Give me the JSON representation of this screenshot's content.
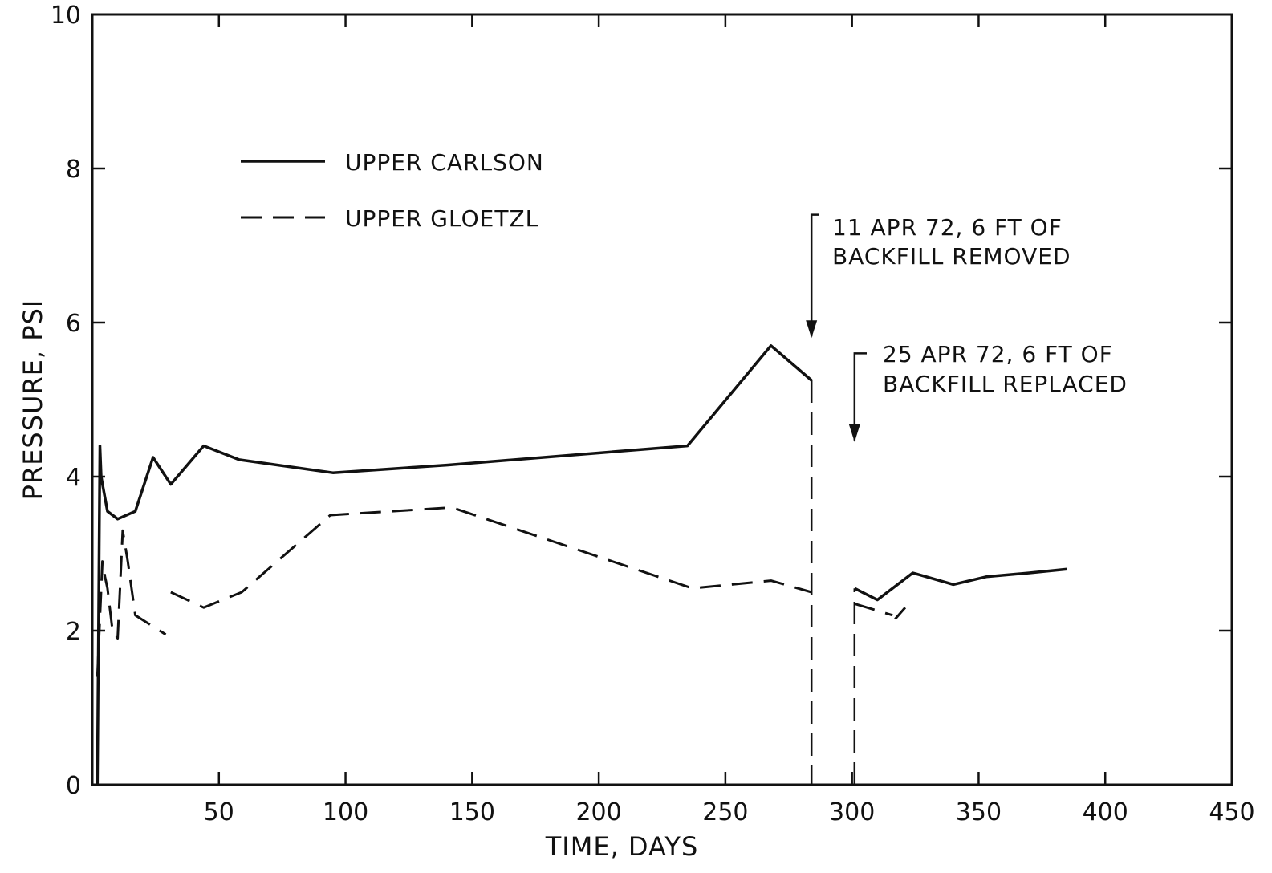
{
  "chart_data": {
    "type": "line",
    "title": "",
    "xlabel": "TIME, DAYS",
    "ylabel": "PRESSURE, PSI",
    "xlim": [
      0,
      450
    ],
    "ylim": [
      0,
      10
    ],
    "x_ticks": [
      50,
      100,
      150,
      200,
      250,
      300,
      350,
      400,
      450
    ],
    "y_ticks": [
      0,
      2,
      4,
      6,
      8,
      10
    ],
    "grid": false,
    "legend_position": "upper-left",
    "series": [
      {
        "name": "UPPER CARLSON",
        "style": "solid",
        "segments": [
          {
            "x": [
              2,
              3,
              3.5,
              6,
              10,
              17,
              24,
              31,
              44,
              58,
              95,
              140,
              235,
              268,
              284
            ],
            "y": [
              0,
              4.4,
              4.0,
              3.55,
              3.45,
              3.55,
              4.25,
              3.9,
              4.4,
              4.22,
              4.05,
              4.15,
              4.4,
              5.7,
              5.25
            ]
          },
          {
            "x": [
              284,
              284
            ],
            "y": [
              5.25,
              0
            ]
          },
          {
            "x": [
              301,
              301
            ],
            "y": [
              0,
              2.55
            ]
          },
          {
            "x": [
              301,
              310,
              324,
              340,
              353,
              370,
              385
            ],
            "y": [
              2.55,
              2.4,
              2.75,
              2.6,
              2.7,
              2.75,
              2.8
            ]
          }
        ]
      },
      {
        "name": "UPPER GLOETZL",
        "style": "dashed",
        "segments": [
          {
            "x": [
              2,
              4,
              5,
              6,
              8,
              10,
              12,
              14,
              17,
              29
            ],
            "y": [
              1.4,
              2.9,
              2.7,
              2.55,
              2.0,
              1.9,
              3.3,
              2.9,
              2.2,
              1.95
            ]
          },
          {
            "x": [
              31,
              44,
              59,
              94,
              142,
              237,
              268,
              284
            ],
            "y": [
              2.5,
              2.3,
              2.5,
              3.5,
              3.6,
              2.55,
              2.65,
              2.5
            ]
          },
          {
            "x": [
              301,
              316
            ],
            "y": [
              2.35,
              2.2
            ]
          },
          {
            "x": [
              317,
              321
            ],
            "y": [
              2.15,
              2.3
            ]
          }
        ]
      }
    ],
    "annotations": [
      {
        "lines": [
          "11 APR 72, 6 FT OF",
          "BACKFILL REMOVED"
        ],
        "x": 284,
        "arrow_from_y": 7.4,
        "arrow_to_y": 5.8
      },
      {
        "lines": [
          "25 APR 72, 6 FT OF",
          "BACKFILL REPLACED"
        ],
        "x": 301,
        "arrow_from_y": 5.6,
        "arrow_to_y": 4.45
      }
    ]
  }
}
